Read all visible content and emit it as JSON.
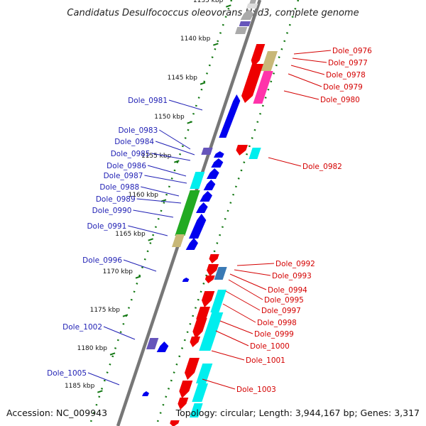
{
  "title": "Candidatus Desulfococcus oleovorans Hxd3, complete genome",
  "footer": {
    "accession": "Accession: NC_009943",
    "topology": "Topology: circular; Length: 3,944,167 bp; Genes: 3,317"
  },
  "ticks": [
    "1135 kbp",
    "1140 kbp",
    "1145 kbp",
    "1150 kbp",
    "1155 kbp",
    "1160 kbp",
    "1165 kbp",
    "1170 kbp",
    "1175 kbp",
    "1180 kbp",
    "1185 kbp"
  ],
  "left_labels": [
    "Dole_0981",
    "Dole_0983",
    "Dole_0984",
    "Dole_0985",
    "Dole_0986",
    "Dole_0987",
    "Dole_0988",
    "Dole_0989",
    "Dole_0990",
    "Dole_0991",
    "Dole_0996",
    "Dole_1002",
    "Dole_1005"
  ],
  "right_labels": [
    "Dole_0976",
    "Dole_0977",
    "Dole_0978",
    "Dole_0979",
    "Dole_0980",
    "Dole_0982",
    "Dole_0992",
    "Dole_0993",
    "Dole_0994",
    "Dole_0995",
    "Dole_0997",
    "Dole_0998",
    "Dole_0999",
    "Dole_1000",
    "Dole_1001",
    "Dole_1003"
  ],
  "colors": {
    "backbone": "#777777",
    "tick": "#117711",
    "forward": "#0000ee",
    "reverse": "#ee0000",
    "label_left": "#1f1fb4",
    "label_right": "#d40000",
    "cyan": "#00eeee",
    "green": "#22aa22",
    "khaki": "#c8b878",
    "magenta": "#ff33aa",
    "purple": "#6655bb",
    "steel": "#3a7ab5",
    "gray": "#aaaaaa"
  }
}
